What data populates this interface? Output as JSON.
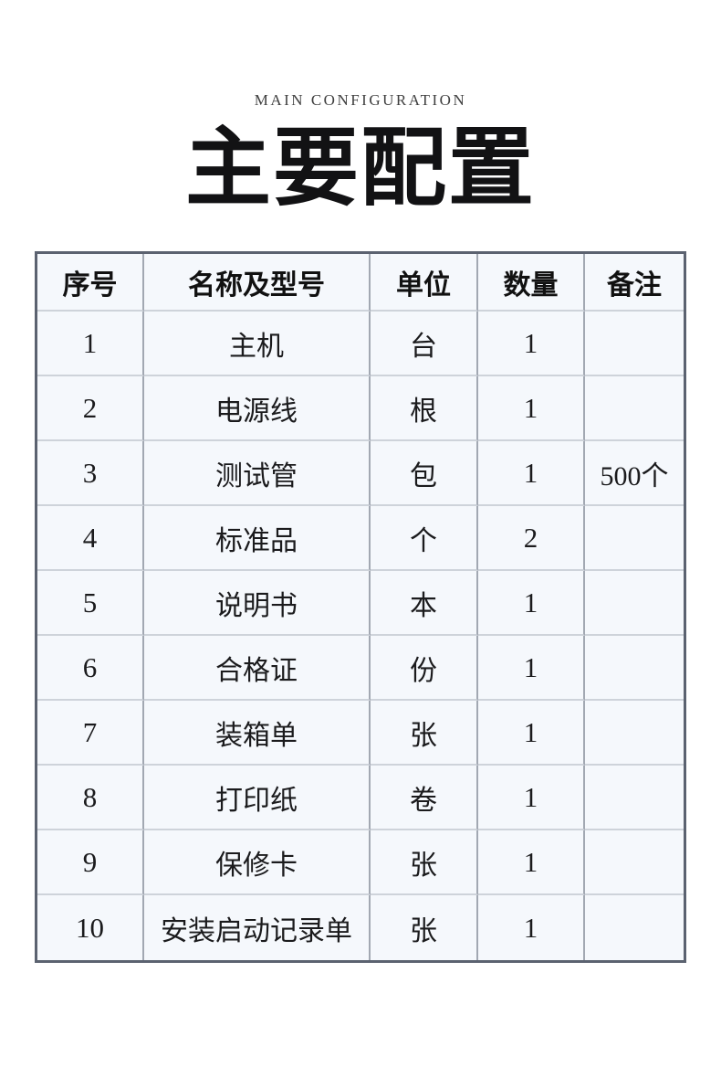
{
  "page": {
    "subtitle": "MAIN CONFIGURATION",
    "title": "主要配置"
  },
  "table": {
    "columns": [
      "序号",
      "名称及型号",
      "单位",
      "数量",
      "备注"
    ],
    "rows": [
      {
        "no": "1",
        "name": "主机",
        "unit": "台",
        "qty": "1",
        "note": ""
      },
      {
        "no": "2",
        "name": "电源线",
        "unit": "根",
        "qty": "1",
        "note": ""
      },
      {
        "no": "3",
        "name": "测试管",
        "unit": "包",
        "qty": "1",
        "note": "500个"
      },
      {
        "no": "4",
        "name": "标准品",
        "unit": "个",
        "qty": "2",
        "note": ""
      },
      {
        "no": "5",
        "name": "说明书",
        "unit": "本",
        "qty": "1",
        "note": ""
      },
      {
        "no": "6",
        "name": "合格证",
        "unit": "份",
        "qty": "1",
        "note": ""
      },
      {
        "no": "7",
        "name": "装箱单",
        "unit": "张",
        "qty": "1",
        "note": ""
      },
      {
        "no": "8",
        "name": "打印纸",
        "unit": "卷",
        "qty": "1",
        "note": ""
      },
      {
        "no": "9",
        "name": "保修卡",
        "unit": "张",
        "qty": "1",
        "note": ""
      },
      {
        "no": "10",
        "name": "安装启动记录单",
        "unit": "张",
        "qty": "1",
        "note": ""
      }
    ]
  },
  "colors": {
    "page_background": "#ffffff",
    "table_background": "#f5f8fc",
    "table_outer_border": "#5b6270",
    "table_vertical_line": "#a2a8b2",
    "table_horizontal_line": "#ced3da",
    "text": "#1b1b1d",
    "subtitle_text": "#3f3f3f"
  }
}
